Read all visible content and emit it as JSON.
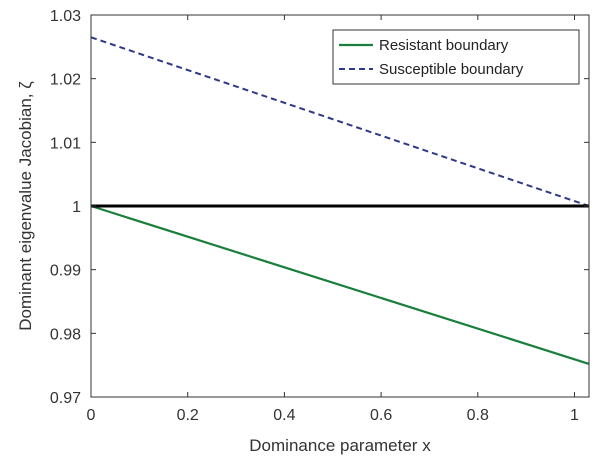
{
  "chart_data": {
    "type": "line",
    "title": "",
    "xlabel": "Dominance parameter x",
    "ylabel": "Dominant eigenvalue Jacobian, ζ",
    "xlim": [
      0,
      1.03
    ],
    "ylim": [
      0.97,
      1.03
    ],
    "x_ticks": [
      0,
      0.2,
      0.4,
      0.6,
      0.8,
      1
    ],
    "x_tick_labels": [
      "0",
      "0.2",
      "0.4",
      "0.6",
      "0.8",
      "1"
    ],
    "y_ticks": [
      0.97,
      0.98,
      0.99,
      1,
      1.01,
      1.02,
      1.03
    ],
    "y_tick_labels": [
      "0.97",
      "0.98",
      "0.99",
      "1",
      "1.01",
      "1.02",
      "1.03"
    ],
    "grid": false,
    "legend_position": "top-right",
    "series": [
      {
        "name": "Resistant boundary",
        "x": [
          0,
          1.03
        ],
        "y": [
          1.0,
          0.9752
        ],
        "color": "#1a7f3c",
        "style": "solid"
      },
      {
        "name": "Susceptible boundary",
        "x": [
          0,
          1.03
        ],
        "y": [
          1.0265,
          1.0
        ],
        "color": "#2e3a87",
        "style": "dashed"
      }
    ],
    "reference_line": {
      "y": 1.0,
      "color": "#000000"
    }
  }
}
